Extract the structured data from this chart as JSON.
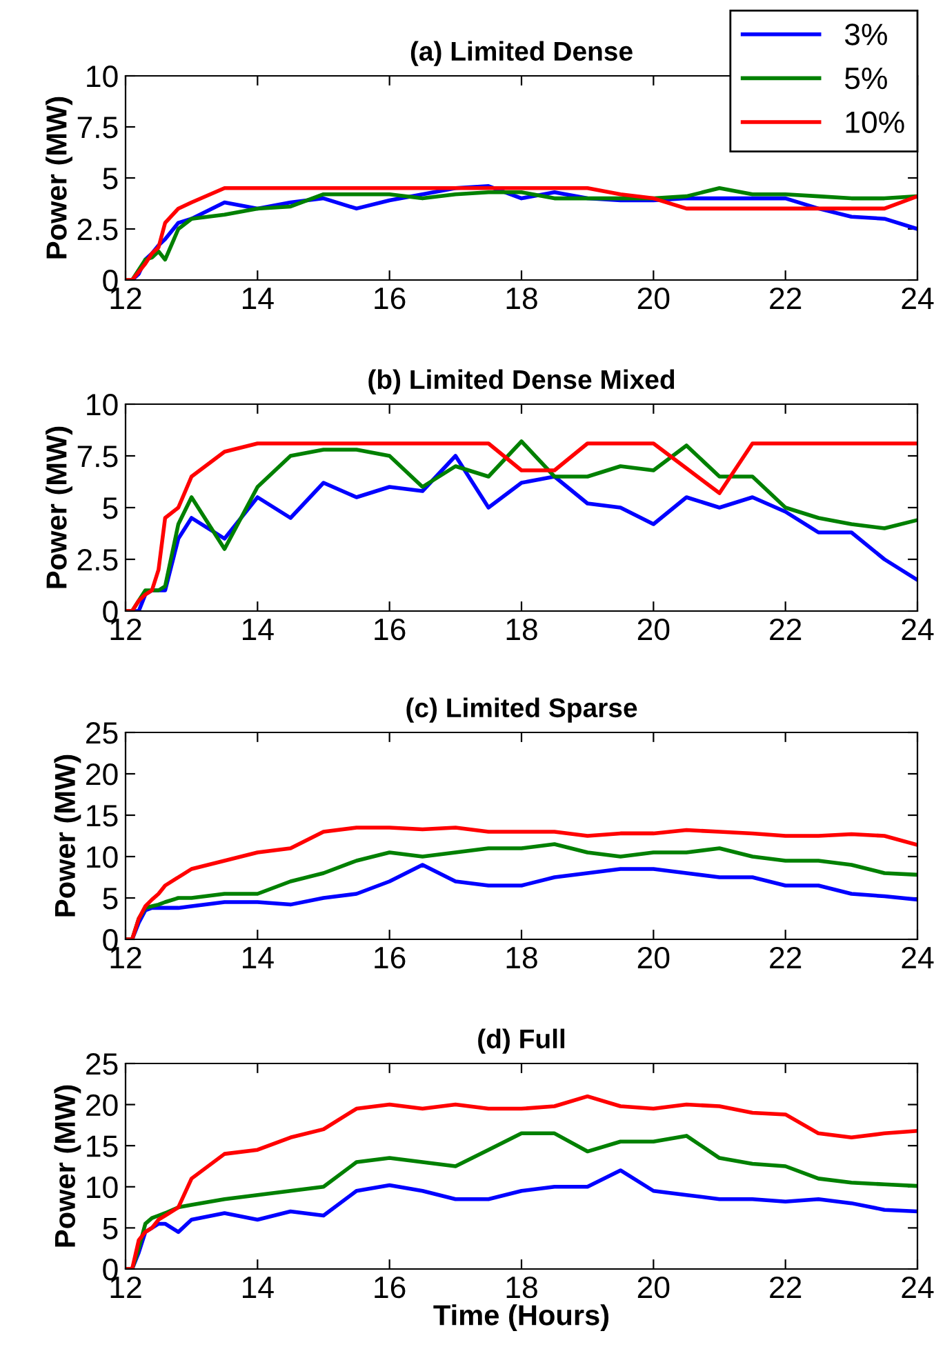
{
  "chart_data": [
    {
      "type": "line",
      "title": "(a) Limited Dense",
      "ylabel": "Power (MW)",
      "legend": "top right",
      "grid": false,
      "x": [
        12,
        12.1,
        12.2,
        12.3,
        12.4,
        12.5,
        12.6,
        12.8,
        13,
        13.5,
        14,
        14.5,
        15,
        15.5,
        16,
        16.5,
        17,
        17.5,
        18,
        18.5,
        19,
        19.5,
        20,
        20.5,
        21,
        21.5,
        22,
        22.5,
        23,
        23.5,
        24
      ],
      "xlim": [
        12,
        24
      ],
      "xticks": [
        12,
        14,
        16,
        18,
        20,
        22,
        24
      ],
      "ylim": [
        0,
        10
      ],
      "yticks": [
        0,
        2.5,
        5,
        7.5,
        10
      ],
      "series": [
        {
          "name": "3%",
          "color": "#0000ff",
          "values": [
            0,
            0,
            0.3,
            1.0,
            1.3,
            1.7,
            2.0,
            2.8,
            3.0,
            3.8,
            3.5,
            3.8,
            4.0,
            3.5,
            3.9,
            4.2,
            4.5,
            4.6,
            4.0,
            4.3,
            4.0,
            3.9,
            3.9,
            4.0,
            4.0,
            4.0,
            4.0,
            3.5,
            3.1,
            3.0,
            2.5
          ]
        },
        {
          "name": "5%",
          "color": "#008000",
          "values": [
            0,
            0,
            0.5,
            1.0,
            1.1,
            1.4,
            1.0,
            2.5,
            3.0,
            3.2,
            3.5,
            3.6,
            4.2,
            4.2,
            4.2,
            4.0,
            4.2,
            4.3,
            4.3,
            4.0,
            4.0,
            4.0,
            4.0,
            4.1,
            4.5,
            4.2,
            4.2,
            4.1,
            4.0,
            4.0,
            4.1
          ]
        },
        {
          "name": "10%",
          "color": "#ff0000",
          "values": [
            0,
            0,
            0.4,
            0.8,
            1.3,
            1.6,
            2.8,
            3.5,
            3.8,
            4.5,
            4.5,
            4.5,
            4.5,
            4.5,
            4.5,
            4.5,
            4.5,
            4.5,
            4.5,
            4.5,
            4.5,
            4.2,
            4.0,
            3.5,
            3.5,
            3.5,
            3.5,
            3.5,
            3.5,
            3.5,
            4.1
          ]
        }
      ]
    },
    {
      "type": "line",
      "title": "(b) Limited Dense Mixed",
      "ylabel": "Power (MW)",
      "grid": false,
      "x": [
        12,
        12.1,
        12.2,
        12.3,
        12.4,
        12.5,
        12.6,
        12.8,
        13,
        13.5,
        14,
        14.5,
        15,
        15.5,
        16,
        16.5,
        17,
        17.5,
        18,
        18.5,
        19,
        19.5,
        20,
        20.5,
        21,
        21.5,
        22,
        22.5,
        23,
        23.5,
        24
      ],
      "xlim": [
        12,
        24
      ],
      "xticks": [
        12,
        14,
        16,
        18,
        20,
        22,
        24
      ],
      "ylim": [
        0,
        10
      ],
      "yticks": [
        0,
        2.5,
        5,
        7.5,
        10
      ],
      "series": [
        {
          "color": "#0000ff",
          "values": [
            0,
            0,
            0,
            0.8,
            1.0,
            1.0,
            1.0,
            3.5,
            4.5,
            3.5,
            5.5,
            4.5,
            6.2,
            5.5,
            6.0,
            5.8,
            7.5,
            5.0,
            6.2,
            6.5,
            5.2,
            5.0,
            4.2,
            5.5,
            5.0,
            5.5,
            4.8,
            3.8,
            3.8,
            2.5,
            1.5
          ]
        },
        {
          "color": "#008000",
          "values": [
            0,
            0,
            0.5,
            1.0,
            1.0,
            1.0,
            1.2,
            4.2,
            5.5,
            3.0,
            6.0,
            7.5,
            7.8,
            7.8,
            7.5,
            6.0,
            7.0,
            6.5,
            8.2,
            6.5,
            6.5,
            7.0,
            6.8,
            8.0,
            6.5,
            6.5,
            5.0,
            4.5,
            4.2,
            4.0,
            4.4
          ]
        },
        {
          "color": "#ff0000",
          "values": [
            0,
            0,
            0.5,
            0.8,
            1.0,
            2.0,
            4.5,
            5.0,
            6.5,
            7.7,
            8.1,
            8.1,
            8.1,
            8.1,
            8.1,
            8.1,
            8.1,
            8.1,
            6.8,
            6.8,
            8.1,
            8.1,
            8.1,
            6.9,
            5.7,
            8.1,
            8.1,
            8.1,
            8.1,
            8.1,
            8.1
          ]
        }
      ]
    },
    {
      "type": "line",
      "title": "(c) Limited Sparse",
      "ylabel": "Power (MW)",
      "grid": false,
      "x": [
        12,
        12.1,
        12.2,
        12.3,
        12.4,
        12.5,
        12.6,
        12.8,
        13,
        13.5,
        14,
        14.5,
        15,
        15.5,
        16,
        16.5,
        17,
        17.5,
        18,
        18.5,
        19,
        19.5,
        20,
        20.5,
        21,
        21.5,
        22,
        22.5,
        23,
        23.5,
        24
      ],
      "xlim": [
        12,
        24
      ],
      "xticks": [
        12,
        14,
        16,
        18,
        20,
        22,
        24
      ],
      "ylim": [
        0,
        25
      ],
      "yticks": [
        0,
        5,
        10,
        15,
        20,
        25
      ],
      "series": [
        {
          "color": "#0000ff",
          "values": [
            0,
            0,
            2,
            3.5,
            3.8,
            3.8,
            3.8,
            3.8,
            4.0,
            4.5,
            4.5,
            4.2,
            5.0,
            5.5,
            7.0,
            9.0,
            7.0,
            6.5,
            6.5,
            7.5,
            8.0,
            8.5,
            8.5,
            8.0,
            7.5,
            7.5,
            6.5,
            6.5,
            5.5,
            5.2,
            4.8
          ]
        },
        {
          "color": "#008000",
          "values": [
            0,
            0,
            2.5,
            3.8,
            4.0,
            4.2,
            4.5,
            5.0,
            5.0,
            5.5,
            5.5,
            7.0,
            8.0,
            9.5,
            10.5,
            10.0,
            10.5,
            11.0,
            11.0,
            11.5,
            10.5,
            10.0,
            10.5,
            10.5,
            11.0,
            10.0,
            9.5,
            9.5,
            9.0,
            8.0,
            7.8
          ]
        },
        {
          "color": "#ff0000",
          "values": [
            0,
            0,
            2.5,
            4.0,
            4.8,
            5.5,
            6.5,
            7.5,
            8.5,
            9.5,
            10.5,
            11.0,
            13.0,
            13.5,
            13.5,
            13.3,
            13.5,
            13.0,
            13.0,
            13.0,
            12.5,
            12.8,
            12.8,
            13.2,
            13.0,
            12.8,
            12.5,
            12.5,
            12.7,
            12.5,
            11.4
          ]
        }
      ]
    },
    {
      "type": "line",
      "title": "(d) Full",
      "ylabel": "Power (MW)",
      "xlabel": "Time (Hours)",
      "grid": false,
      "x": [
        12,
        12.1,
        12.2,
        12.3,
        12.4,
        12.5,
        12.6,
        12.8,
        13,
        13.5,
        14,
        14.5,
        15,
        15.5,
        16,
        16.5,
        17,
        17.5,
        18,
        18.5,
        19,
        19.5,
        20,
        20.5,
        21,
        21.5,
        22,
        22.5,
        23,
        23.5,
        24
      ],
      "xlim": [
        12,
        24
      ],
      "xticks": [
        12,
        14,
        16,
        18,
        20,
        22,
        24
      ],
      "ylim": [
        0,
        25
      ],
      "yticks": [
        0,
        5,
        10,
        15,
        20,
        25
      ],
      "series": [
        {
          "color": "#0000ff",
          "values": [
            0,
            0,
            2,
            4.5,
            5.0,
            5.5,
            5.5,
            4.5,
            6.0,
            6.8,
            6.0,
            7.0,
            6.5,
            9.5,
            10.2,
            9.5,
            8.5,
            8.5,
            9.5,
            10.0,
            10.0,
            12.0,
            9.5,
            9.0,
            8.5,
            8.5,
            8.2,
            8.5,
            8.0,
            7.2,
            7.0
          ]
        },
        {
          "color": "#008000",
          "values": [
            0,
            0,
            2.5,
            5.5,
            6.2,
            6.5,
            6.8,
            7.5,
            7.8,
            8.5,
            9.0,
            9.5,
            10.0,
            13.0,
            13.5,
            13.0,
            12.5,
            14.5,
            16.5,
            16.5,
            14.3,
            15.5,
            15.5,
            16.2,
            13.5,
            12.8,
            12.5,
            11.0,
            10.5,
            10.3,
            10.1
          ]
        },
        {
          "color": "#ff0000",
          "values": [
            0,
            0,
            3.5,
            4.5,
            5.0,
            6.0,
            6.5,
            7.5,
            11.0,
            14.0,
            14.5,
            16.0,
            17.0,
            19.5,
            20.0,
            19.5,
            20.0,
            19.5,
            19.5,
            19.8,
            21.0,
            19.8,
            19.5,
            20.0,
            19.8,
            19.0,
            18.8,
            16.5,
            16.0,
            16.5,
            16.8
          ]
        }
      ]
    }
  ]
}
